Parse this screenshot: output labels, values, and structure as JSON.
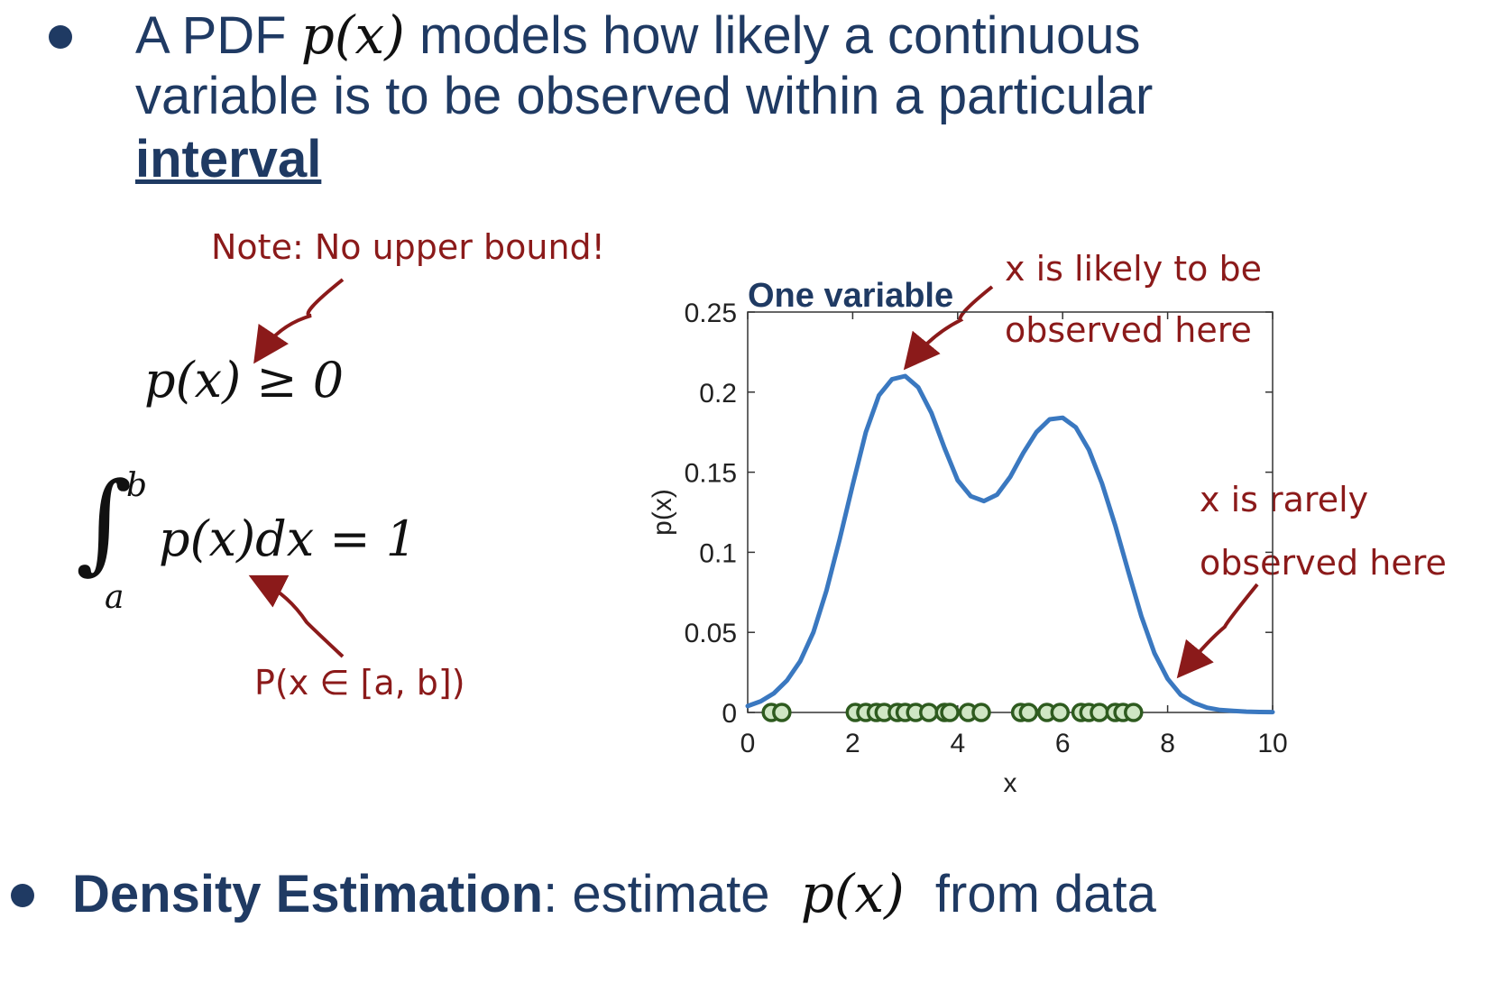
{
  "bullet1": {
    "prefix": "A PDF",
    "math": "p(x)",
    "suffix": "models how likely a continuous",
    "line2": "variable is to be observed within a particular",
    "emphasis": "interval"
  },
  "equations": {
    "nonneg": "p(x) ≥ 0",
    "integral_upper": "b",
    "integral_lower": "a",
    "integral_body": "p(x)dx = 1"
  },
  "notes": {
    "upper_bound": "Note: No upper bound!",
    "prob_interval": "P(x ∈ [a, b])",
    "likely_1": "x is likely to be",
    "likely_2": "observed here",
    "rarely_1": "x is rarely",
    "rarely_2": "observed here"
  },
  "bullet2": {
    "bold": "Density Estimation",
    "rest": ": estimate",
    "math": "p(x)",
    "end": "from data"
  },
  "colors": {
    "text": "#1f3a63",
    "note": "#8b1a1a",
    "curve": "#3a78c0",
    "points_stroke": "#2e5b1f",
    "points_fill": "#cfe6c4"
  },
  "chart_data": {
    "type": "line",
    "title": "One variable",
    "xlabel": "x",
    "ylabel": "p(x)",
    "xlim": [
      0,
      10
    ],
    "ylim": [
      0,
      0.25
    ],
    "xticks": [
      0,
      2,
      4,
      6,
      8,
      10
    ],
    "yticks": [
      0,
      0.05,
      0.1,
      0.15,
      0.2,
      0.25
    ],
    "ytick_labels": [
      "0",
      "0.05",
      "0.1",
      "0.15",
      "0.2",
      "0.25"
    ],
    "grid": false,
    "curve": {
      "x": [
        0,
        0.25,
        0.5,
        0.75,
        1,
        1.25,
        1.5,
        1.75,
        2,
        2.25,
        2.5,
        2.75,
        3,
        3.25,
        3.5,
        3.75,
        4,
        4.25,
        4.5,
        4.75,
        5,
        5.25,
        5.5,
        5.75,
        6,
        6.25,
        6.5,
        6.75,
        7,
        7.25,
        7.5,
        7.75,
        8,
        8.25,
        8.5,
        8.75,
        9,
        9.25,
        9.5,
        9.75,
        10
      ],
      "y": [
        0.004,
        0.007,
        0.012,
        0.02,
        0.032,
        0.05,
        0.076,
        0.108,
        0.142,
        0.175,
        0.198,
        0.208,
        0.21,
        0.203,
        0.187,
        0.165,
        0.145,
        0.135,
        0.132,
        0.136,
        0.147,
        0.162,
        0.175,
        0.183,
        0.184,
        0.178,
        0.164,
        0.143,
        0.117,
        0.088,
        0.06,
        0.037,
        0.021,
        0.011,
        0.006,
        0.003,
        0.0015,
        0.001,
        0.0005,
        0.0003,
        0.0002
      ]
    },
    "samples": [
      0.45,
      0.65,
      2.05,
      2.25,
      2.45,
      2.6,
      2.85,
      3.0,
      3.2,
      3.45,
      3.75,
      3.85,
      4.2,
      4.45,
      5.2,
      5.35,
      5.7,
      5.95,
      6.35,
      6.5,
      6.7,
      7.0,
      7.15,
      7.35
    ]
  }
}
